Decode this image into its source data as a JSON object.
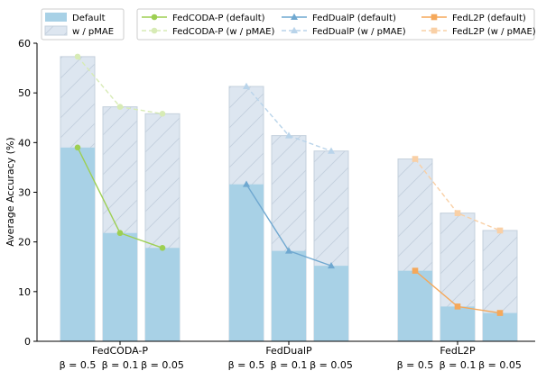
{
  "chart_data": {
    "type": "bar",
    "ylabel": "Average Accuracy (%)",
    "ylim": [
      0,
      60
    ],
    "yticks": [
      0,
      10,
      20,
      30,
      40,
      50,
      60
    ],
    "grid": false,
    "groups": [
      {
        "name": "FedCODA-P",
        "betas": [
          "β = 0.5",
          "β = 0.1",
          "β = 0.05"
        ]
      },
      {
        "name": "FedDualP",
        "betas": [
          "β = 0.5",
          "β = 0.1",
          "β = 0.05"
        ]
      },
      {
        "name": "FedL2P",
        "betas": [
          "β = 0.5",
          "β = 0.1",
          "β = 0.05"
        ]
      }
    ],
    "bar_series": [
      {
        "name": "Default",
        "color": "#a8d1e6",
        "style": "solid",
        "values": [
          39.0,
          21.8,
          18.8,
          31.6,
          18.2,
          15.2,
          14.2,
          7.0,
          5.7
        ]
      },
      {
        "name": "w / pMAE",
        "color": "#dde6f0",
        "style": "hatched",
        "values": [
          57.3,
          47.2,
          45.8,
          51.3,
          41.4,
          38.3,
          36.7,
          25.8,
          22.3
        ]
      }
    ],
    "line_series": [
      {
        "name": "FedCODA-P (default)",
        "group": 0,
        "color": "#9dcf52",
        "marker": "circle",
        "dashed": false,
        "values": [
          39.0,
          21.8,
          18.8
        ]
      },
      {
        "name": "FedCODA-P (w / pMAE)",
        "group": 0,
        "color": "#d7ebb5",
        "marker": "circle",
        "dashed": true,
        "values": [
          57.3,
          47.2,
          45.8
        ]
      },
      {
        "name": "FedDualP (default)",
        "group": 1,
        "color": "#6fa8d0",
        "marker": "triangle",
        "dashed": false,
        "values": [
          31.6,
          18.2,
          15.2
        ]
      },
      {
        "name": "FedDualP (w / pMAE)",
        "group": 1,
        "color": "#b9d4ea",
        "marker": "triangle",
        "dashed": true,
        "values": [
          51.3,
          41.4,
          38.3
        ]
      },
      {
        "name": "FedL2P (default)",
        "group": 2,
        "color": "#f5a85a",
        "marker": "square",
        "dashed": false,
        "values": [
          14.2,
          7.0,
          5.7
        ]
      },
      {
        "name": "FedL2P (w / pMAE)",
        "group": 2,
        "color": "#f9d0a6",
        "marker": "square",
        "dashed": true,
        "values": [
          36.7,
          25.8,
          22.3
        ]
      }
    ],
    "legend_placement": "top"
  }
}
